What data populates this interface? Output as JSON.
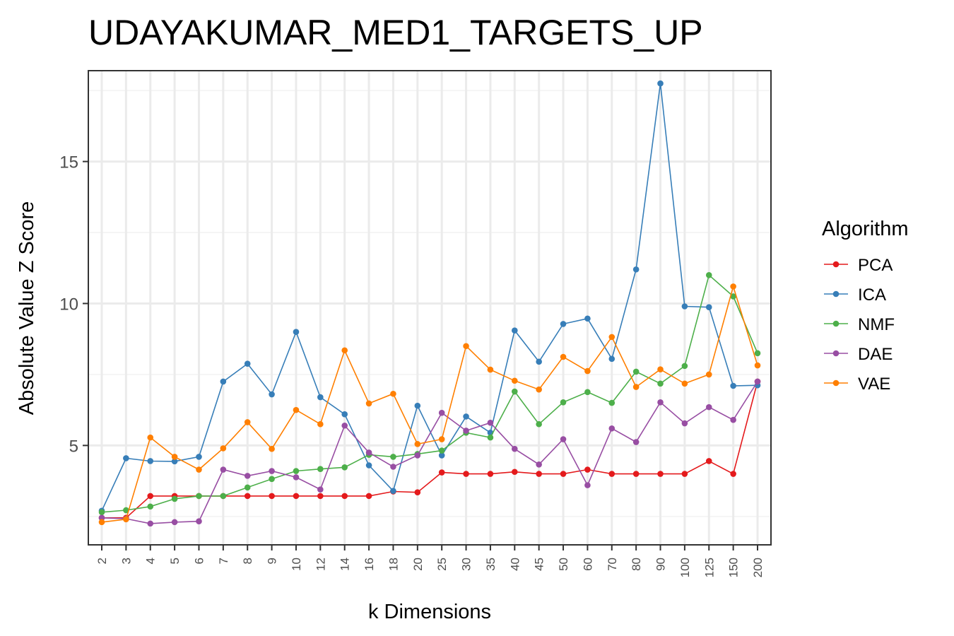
{
  "chart_data": {
    "type": "line",
    "title": "UDAYAKUMAR_MED1_TARGETS_UP",
    "xlabel": "k Dimensions",
    "ylabel": "Absolute Value Z Score",
    "categories": [
      "2",
      "3",
      "4",
      "5",
      "6",
      "7",
      "8",
      "9",
      "10",
      "12",
      "14",
      "16",
      "18",
      "20",
      "25",
      "30",
      "35",
      "40",
      "45",
      "50",
      "60",
      "70",
      "80",
      "90",
      "100",
      "125",
      "150",
      "200"
    ],
    "yticks": [
      5,
      10,
      15
    ],
    "ylim": [
      1.5,
      18.2
    ],
    "grid": true,
    "legend_title": "Algorithm",
    "legend_position": "right",
    "series": [
      {
        "name": "PCA",
        "color": "#e41a1c",
        "values": [
          2.45,
          2.45,
          3.22,
          3.22,
          3.22,
          3.22,
          3.22,
          3.22,
          3.22,
          3.22,
          3.22,
          3.22,
          3.38,
          3.35,
          4.05,
          4.0,
          4.0,
          4.07,
          4.0,
          4.0,
          4.15,
          4.0,
          4.0,
          4.0,
          4.0,
          4.45,
          4.0,
          7.25
        ]
      },
      {
        "name": "ICA",
        "color": "#377eb8",
        "values": [
          2.7,
          4.55,
          4.45,
          4.44,
          4.6,
          7.25,
          7.88,
          6.8,
          9.0,
          6.7,
          6.1,
          4.3,
          3.4,
          6.4,
          4.65,
          6.02,
          5.45,
          9.05,
          7.95,
          9.28,
          9.47,
          8.05,
          11.2,
          17.75,
          9.9,
          9.87,
          7.1,
          7.12
        ]
      },
      {
        "name": "NMF",
        "color": "#4daf4a",
        "values": [
          2.65,
          2.72,
          2.85,
          3.12,
          3.22,
          3.22,
          3.52,
          3.82,
          4.1,
          4.17,
          4.23,
          4.67,
          4.6,
          4.7,
          4.82,
          5.45,
          5.28,
          6.9,
          5.75,
          6.52,
          6.88,
          6.5,
          7.6,
          7.18,
          7.8,
          11.0,
          10.25,
          8.25
        ]
      },
      {
        "name": "DAE",
        "color": "#984ea3",
        "values": [
          2.45,
          2.42,
          2.25,
          2.3,
          2.33,
          4.15,
          3.93,
          4.1,
          3.88,
          3.45,
          5.7,
          4.75,
          4.25,
          4.65,
          6.15,
          5.52,
          5.8,
          4.88,
          4.33,
          5.22,
          3.6,
          5.6,
          5.12,
          6.52,
          5.78,
          6.35,
          5.9,
          7.25
        ]
      },
      {
        "name": "VAE",
        "color": "#ff7f00",
        "values": [
          2.3,
          2.4,
          5.28,
          4.6,
          4.15,
          4.9,
          5.82,
          4.88,
          6.25,
          5.75,
          8.35,
          6.48,
          6.82,
          5.05,
          5.22,
          8.5,
          7.67,
          7.28,
          6.97,
          8.12,
          7.62,
          8.82,
          7.06,
          7.68,
          7.18,
          7.5,
          10.6,
          7.82
        ]
      }
    ]
  }
}
